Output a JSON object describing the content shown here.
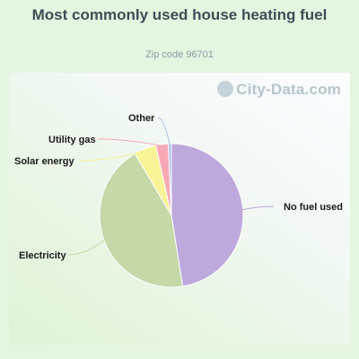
{
  "title": "Most commonly used house heating fuel",
  "subtitle": "Zip code 96701",
  "watermark": "City-Data.com",
  "chart_data": {
    "type": "pie",
    "title": "Most commonly used house heating fuel",
    "subtitle": "Zip code 96701",
    "slices": [
      {
        "label": "No fuel used",
        "value": 47.5,
        "color": "#bea9dc"
      },
      {
        "label": "Electricity",
        "value": 44.0,
        "color": "#c4d8a8"
      },
      {
        "label": "Solar energy",
        "value": 5.0,
        "color": "#f8f396"
      },
      {
        "label": "Utility gas",
        "value": 2.8,
        "color": "#f6a9b4"
      },
      {
        "label": "Other",
        "value": 0.7,
        "color": "#a9bff0"
      }
    ]
  }
}
